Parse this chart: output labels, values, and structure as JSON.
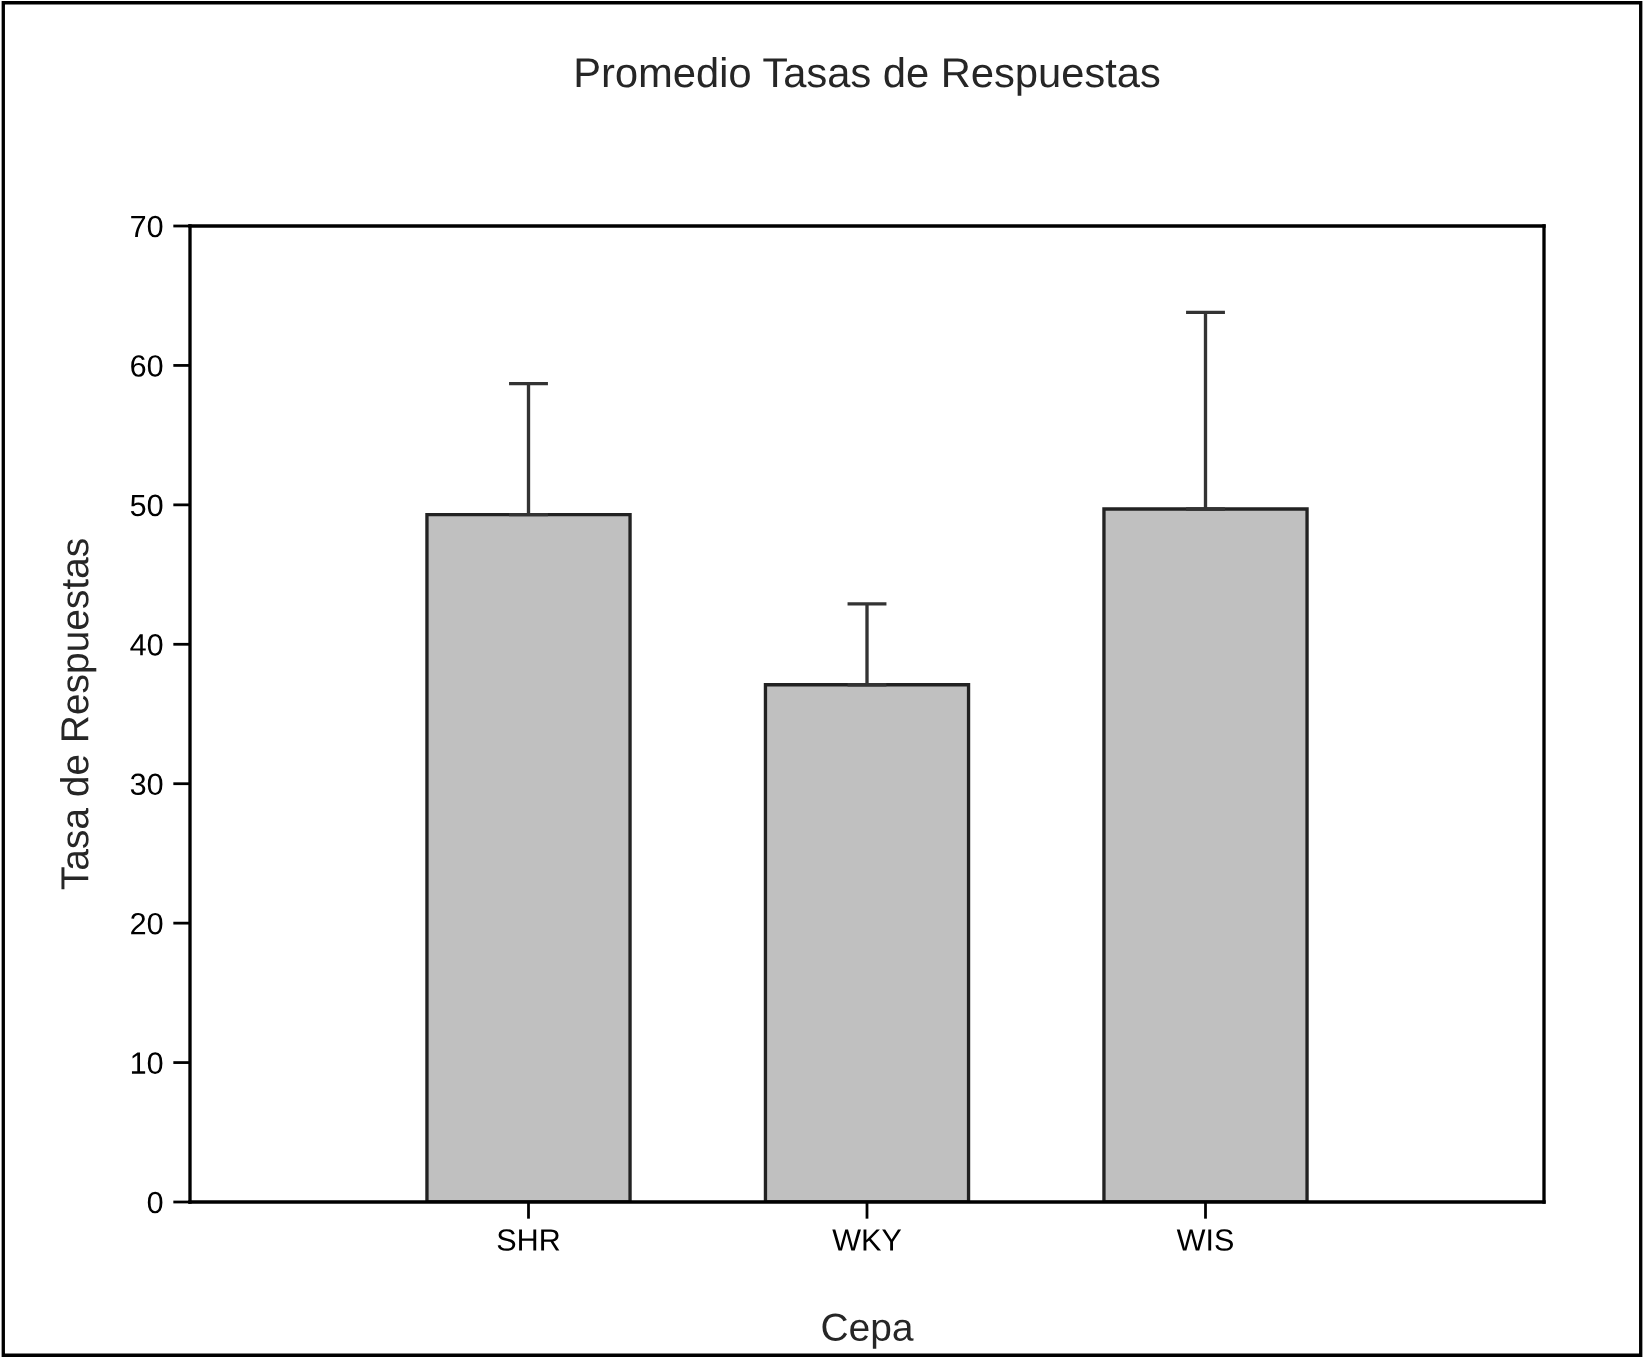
{
  "chart_data": {
    "type": "bar",
    "title": "Promedio Tasas de Respuestas",
    "xlabel": "Cepa",
    "ylabel": "Tasa de Respuestas",
    "categories": [
      "SHR",
      "WKY",
      "WIS"
    ],
    "values": [
      49.3,
      37.1,
      49.7
    ],
    "errors": [
      [
        49.3,
        58.7
      ],
      [
        37.1,
        42.9
      ],
      [
        49.7,
        63.8
      ]
    ],
    "color": "#c0c0c0",
    "ylim": [
      0,
      70
    ],
    "yticks": [
      0,
      10,
      20,
      30,
      40,
      50,
      60,
      70
    ],
    "grid": false,
    "legend": false
  }
}
